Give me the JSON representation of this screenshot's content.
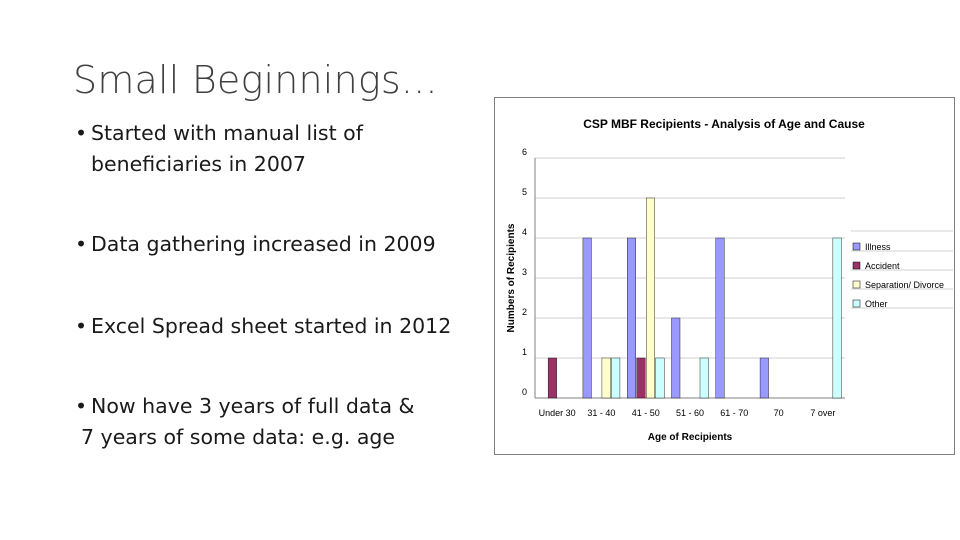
{
  "slide": {
    "title": "Small Beginnings...",
    "bullets": [
      {
        "bullet": "•",
        "lines": [
          "Started with manual list of",
          "beneficiaries in 2007"
        ]
      },
      {
        "bullet": "•",
        "lines": [
          "Data gathering increased in 2009"
        ]
      },
      {
        "bullet": "•",
        "lines": [
          "Excel Spread sheet started in 2012"
        ]
      },
      {
        "bullet": "•",
        "lines": [
          "Now have 3 years of full data &",
          "7 years of some data: e.g. age"
        ]
      }
    ]
  },
  "chart_data": {
    "type": "bar",
    "title": "CSP MBF Recipients - Analysis of Age and Cause",
    "xlabel": "Age of Recipients",
    "ylabel": "Numbers of Recipients",
    "ylim": [
      0,
      6
    ],
    "yticks": [
      0,
      1,
      2,
      3,
      4,
      5,
      6
    ],
    "grid": true,
    "legend": "right",
    "categories": [
      "Under 30",
      "31 - 40",
      "41 - 50",
      "51 - 60",
      "61 - 70",
      "70",
      "7 over"
    ],
    "series": [
      {
        "name": "Illness",
        "color": "#9999ff",
        "values": [
          0,
          4,
          4,
          2,
          4,
          1,
          0
        ]
      },
      {
        "name": "Accident",
        "color": "#993366",
        "values": [
          1,
          0,
          1,
          0,
          0,
          0,
          0
        ]
      },
      {
        "name": "Separation/ Divorce",
        "color": "#ffffcc",
        "values": [
          0,
          1,
          5,
          0,
          0,
          0,
          0
        ]
      },
      {
        "name": "Other",
        "color": "#ccffff",
        "values": [
          0,
          1,
          1,
          1,
          0,
          0,
          4
        ]
      }
    ]
  }
}
